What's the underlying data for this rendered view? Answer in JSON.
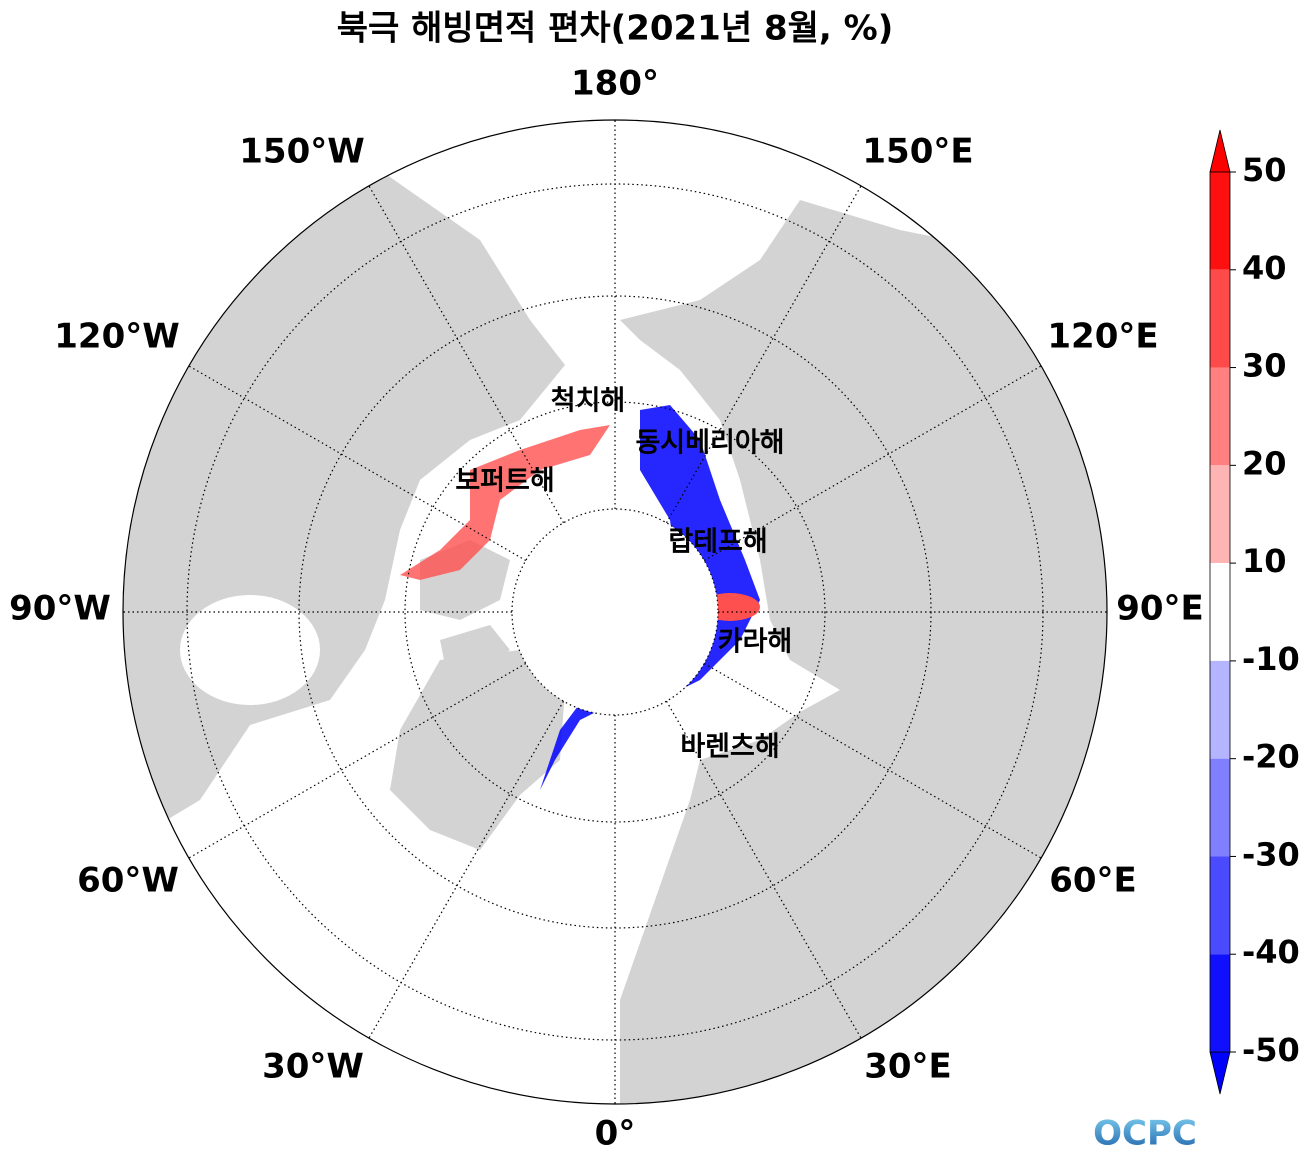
{
  "title": "북극 해빙면적 편차(2021년 8월, %)",
  "lon_labels": [
    "180°",
    "150°E",
    "120°E",
    "90°E",
    "60°E",
    "30°E",
    "0°",
    "30°W",
    "60°W",
    "90°W",
    "120°W",
    "150°W"
  ],
  "sea_labels": [
    "척치해",
    "동시베리아해",
    "보퍼트해",
    "랍테프해",
    "카라해",
    "바렌츠해"
  ],
  "colorbar": {
    "ticks": [
      50,
      40,
      30,
      20,
      10,
      -10,
      -20,
      -30,
      -40,
      -50
    ],
    "colors": [
      "#ff1010",
      "#ff4a4a",
      "#ff8080",
      "#ffb4b4",
      "#ffffff",
      "#b4b4ff",
      "#8080ff",
      "#4a4aff",
      "#1010ff"
    ],
    "over_color": "#ff0000",
    "under_color": "#0000ff"
  },
  "logo": "OCPC"
}
